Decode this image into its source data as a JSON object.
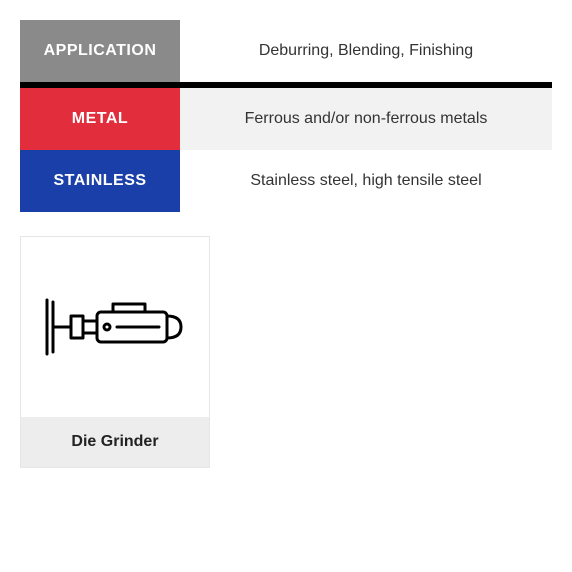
{
  "rows": [
    {
      "label": "APPLICATION",
      "value": "Deburring, Blending, Finishing",
      "label_bg": "#8a8a8a",
      "value_bg": "#ffffff"
    },
    {
      "label": "METAL",
      "value": "Ferrous and/or non-ferrous metals",
      "label_bg": "#e12d3c",
      "value_bg": "#f2f2f2"
    },
    {
      "label": "STAINLESS",
      "value": "Stainless steel, high tensile steel",
      "label_bg": "#1a3fa8",
      "value_bg": "#ffffff"
    }
  ],
  "divider_after_row": 0,
  "divider_color": "#000000",
  "tool": {
    "name": "Die Grinder",
    "label_bg": "#ededed"
  }
}
